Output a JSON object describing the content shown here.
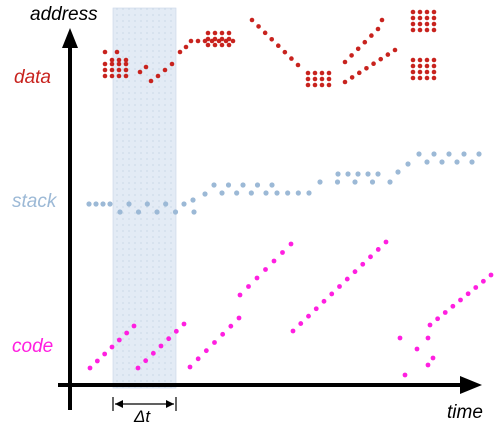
{
  "labels": {
    "address": "address",
    "time": "time",
    "data": "data",
    "stack": "stack",
    "code": "code",
    "delta_t": "Δt"
  },
  "colors": {
    "data": "#c8231e",
    "stack": "#9cb9d6",
    "code": "#ff1fe0",
    "window": "#dfe8f3",
    "axis": "#000000"
  }
}
